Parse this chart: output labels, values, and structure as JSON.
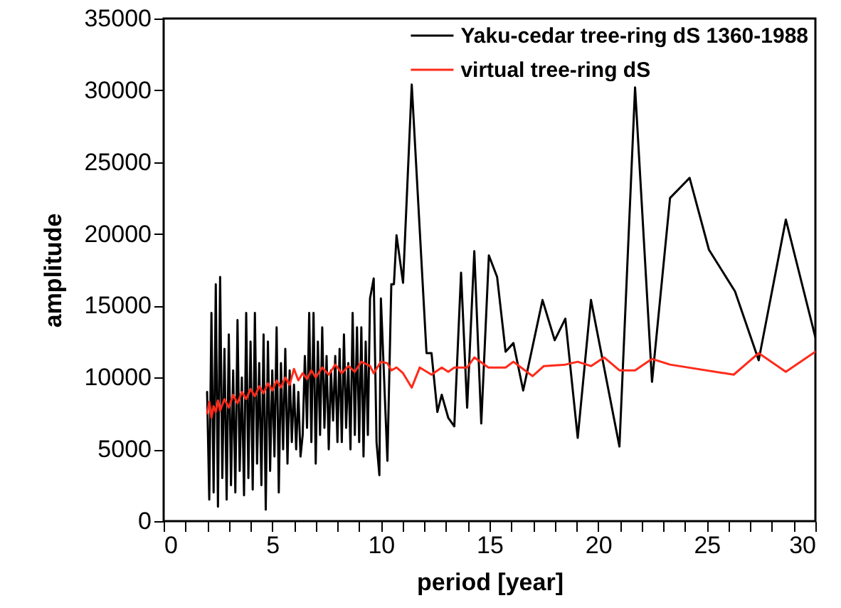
{
  "chart_data": {
    "type": "line",
    "xlabel": "period [year]",
    "ylabel": "amplitude",
    "legend": "top right",
    "grid": false,
    "xlim": [
      0,
      30
    ],
    "xticks": [
      0,
      {
        "value": 1,
        "label": null
      },
      {
        "value": 2,
        "label": null
      },
      {
        "value": 3,
        "label": null
      },
      {
        "value": 4,
        "label": null
      },
      5,
      {
        "value": 6,
        "label": null
      },
      {
        "value": 7,
        "label": null
      },
      {
        "value": 8,
        "label": null
      },
      {
        "value": 9,
        "label": null
      },
      10,
      {
        "value": 11,
        "label": null
      },
      {
        "value": 12,
        "label": null
      },
      {
        "value": 13,
        "label": null
      },
      {
        "value": 14,
        "label": null
      },
      15,
      {
        "value": 16,
        "label": null
      },
      {
        "value": 17,
        "label": null
      },
      {
        "value": 18,
        "label": null
      },
      {
        "value": 19,
        "label": null
      },
      20,
      {
        "value": 21,
        "label": null
      },
      {
        "value": 22,
        "label": null
      },
      {
        "value": 23,
        "label": null
      },
      {
        "value": 24,
        "label": null
      },
      25,
      {
        "value": 26,
        "label": null
      },
      {
        "value": 27,
        "label": null
      },
      {
        "value": 28,
        "label": null
      },
      {
        "value": 29,
        "label": null
      },
      30
    ],
    "ylim": [
      0,
      35000
    ],
    "yticks": [
      0,
      5000,
      10000,
      15000,
      20000,
      25000,
      30000,
      35000
    ],
    "series": [
      {
        "name": "Yaku-cedar tree-ring dS 1360-1988",
        "color": "#000000",
        "x": [
          2.0,
          2.1,
          2.2,
          2.3,
          2.4,
          2.5,
          2.6,
          2.7,
          2.8,
          2.9,
          3.0,
          3.1,
          3.2,
          3.3,
          3.4,
          3.5,
          3.6,
          3.7,
          3.8,
          3.9,
          4.0,
          4.1,
          4.2,
          4.3,
          4.4,
          4.5,
          4.6,
          4.7,
          4.8,
          4.9,
          5.0,
          5.1,
          5.2,
          5.3,
          5.4,
          5.5,
          5.6,
          5.7,
          5.8,
          5.9,
          6.0,
          6.1,
          6.2,
          6.3,
          6.4,
          6.5,
          6.6,
          6.7,
          6.8,
          6.9,
          7.0,
          7.1,
          7.2,
          7.3,
          7.4,
          7.5,
          7.6,
          7.7,
          7.8,
          7.9,
          8.0,
          8.1,
          8.2,
          8.3,
          8.4,
          8.5,
          8.6,
          8.7,
          8.8,
          8.9,
          9.0,
          9.1,
          9.2,
          9.3,
          9.4,
          9.5,
          9.67,
          9.8,
          9.93,
          10.0,
          10.3,
          10.48,
          10.6,
          10.72,
          11.02,
          11.42,
          12.1,
          12.33,
          12.6,
          12.8,
          13.1,
          13.38,
          13.69,
          13.97,
          14.3,
          14.62,
          14.97,
          15.35,
          15.74,
          16.1,
          16.55,
          17.44,
          18.0,
          18.49,
          19.06,
          19.67,
          20.98,
          21.7,
          22.48,
          23.31,
          24.21,
          25.1,
          26.3,
          27.39,
          28.64,
          30.0
        ],
        "values": [
          9000,
          1500,
          14500,
          2000,
          16500,
          1000,
          17000,
          3000,
          12000,
          1500,
          13000,
          2500,
          10500,
          2000,
          14000,
          3500,
          10000,
          1800,
          14500,
          3000,
          12500,
          2200,
          14500,
          4000,
          11000,
          2500,
          13000,
          800,
          12500,
          3500,
          10500,
          4500,
          13500,
          2000,
          11000,
          5000,
          12000,
          4000,
          10500,
          5500,
          9500,
          5000,
          9000,
          4500,
          6000,
          11500,
          6500,
          14500,
          5500,
          14500,
          4000,
          12500,
          6000,
          13500,
          6500,
          11500,
          5000,
          10500,
          7000,
          11500,
          5500,
          12000,
          5500,
          13000,
          6500,
          11000,
          5000,
          14500,
          6000,
          13500,
          5500,
          13500,
          4500,
          12500,
          6000,
          15500,
          16900,
          5500,
          3200,
          15500,
          4200,
          16500,
          16500,
          19900,
          16600,
          30400,
          11700,
          11700,
          7600,
          8800,
          7200,
          6600,
          17300,
          7900,
          18800,
          6800,
          18500,
          17000,
          11800,
          12400,
          9100,
          15400,
          12600,
          14100,
          5800,
          15400,
          5200,
          30200,
          9700,
          22500,
          23900,
          18900,
          16000,
          11200,
          21000,
          12800
        ]
      },
      {
        "name": "virtual tree-ring dS",
        "color": "#ff2a1a",
        "x": [
          2.0,
          2.1,
          2.2,
          2.3,
          2.4,
          2.5,
          2.6,
          2.8,
          3.0,
          3.2,
          3.4,
          3.6,
          3.8,
          4.0,
          4.2,
          4.4,
          4.6,
          4.8,
          5.0,
          5.2,
          5.4,
          5.6,
          5.8,
          6.0,
          6.2,
          6.4,
          6.6,
          6.8,
          7.0,
          7.3,
          7.6,
          7.9,
          8.2,
          8.5,
          8.8,
          9.1,
          9.5,
          9.67,
          10.0,
          10.3,
          10.48,
          10.72,
          11.02,
          11.42,
          11.79,
          12.33,
          12.8,
          13.1,
          13.38,
          13.97,
          14.3,
          14.95,
          15.74,
          16.1,
          16.98,
          17.5,
          18.49,
          19.06,
          19.67,
          20.28,
          20.98,
          21.7,
          22.48,
          23.31,
          26.24,
          27.39,
          28.64,
          30.0
        ],
        "values": [
          7500,
          8300,
          7200,
          8000,
          7600,
          8400,
          7700,
          8500,
          7900,
          8800,
          8200,
          9000,
          8500,
          9200,
          8700,
          9400,
          8900,
          9600,
          9100,
          9800,
          9300,
          10000,
          9500,
          10600,
          9800,
          10300,
          9900,
          10500,
          10000,
          10700,
          10200,
          10900,
          10300,
          10800,
          10400,
          11100,
          10800,
          10300,
          11100,
          11000,
          10500,
          10700,
          10300,
          9300,
          10700,
          10200,
          10700,
          10400,
          10700,
          10700,
          11400,
          10700,
          10700,
          11100,
          10100,
          10800,
          10900,
          11100,
          10800,
          11400,
          10500,
          10500,
          11300,
          10900,
          10200,
          11700,
          10400,
          11800
        ]
      }
    ]
  }
}
